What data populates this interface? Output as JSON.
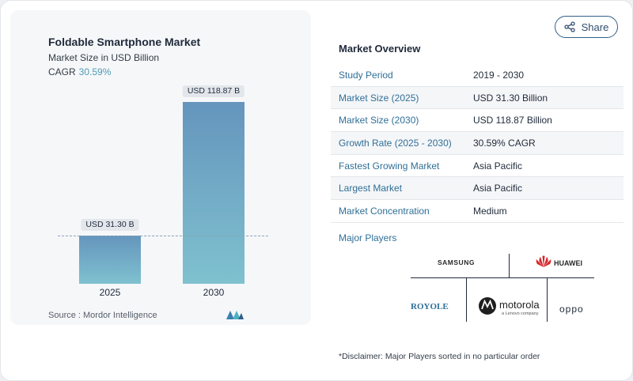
{
  "header": {
    "title": "Foldable Smartphone Market",
    "subtitle": "Market Size in USD Billion",
    "cagr_label": "CAGR",
    "cagr_value": "30.59%"
  },
  "share": {
    "label": "Share",
    "icon": "share-icon"
  },
  "chart_data": {
    "type": "bar",
    "categories": [
      "2025",
      "2030"
    ],
    "values": [
      31.3,
      118.87
    ],
    "data_labels": [
      "USD 31.30 B",
      "USD 118.87 B"
    ],
    "ylim": [
      0,
      118.87
    ],
    "grid": false,
    "bar_color_top": "#6595bd",
    "bar_color_bottom": "#7fc1cf"
  },
  "source": "Source :  Mordor Intelligence",
  "overview": {
    "title": "Market Overview",
    "rows": [
      {
        "key": "Study Period",
        "value": "2019 - 2030"
      },
      {
        "key": "Market Size (2025)",
        "value": "USD 31.30 Billion"
      },
      {
        "key": "Market Size (2030)",
        "value": "USD 118.87 Billion"
      },
      {
        "key": "Growth Rate (2025 - 2030)",
        "value": "30.59% CAGR"
      },
      {
        "key": "Fastest Growing Market",
        "value": "Asia Pacific"
      },
      {
        "key": "Largest Market",
        "value": "Asia Pacific"
      },
      {
        "key": "Market Concentration",
        "value": "Medium"
      }
    ]
  },
  "players": {
    "title": "Major Players",
    "names": [
      "SAMSUNG",
      "HUAWEI",
      "ROYOLE",
      "motorola",
      "a Lenovo company",
      "oppo"
    ]
  },
  "disclaimer": "*Disclaimer: Major Players sorted in no particular order"
}
